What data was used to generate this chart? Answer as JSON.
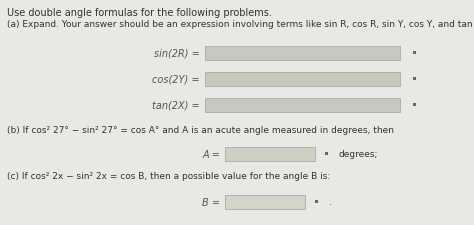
{
  "bg_color": "#e8e8e4",
  "white_color": "#ffffff",
  "text_color": "#333333",
  "title": "Use double angle formulas for the following problems.",
  "part_a_header": "(a) Expand. Your answer should be an expression involving terms like sin R, cos R, sin Y, cos Y, and tan X.",
  "equations_a": [
    "sin(2R) =",
    "cos(2Y) =",
    "tan(2X) ="
  ],
  "part_b_header": "(b) If cos² 27° − sin² 27° = cos A° and A is an acute angle measured in degrees, then",
  "eq_b": "A =",
  "b_suffix": "degrees;",
  "part_c_header": "(c) If cos² 2x − sin² 2x = cos B, then a possible value for the angle B is:",
  "eq_c": "B =",
  "c_suffix": ".",
  "input_box_color_a": "#c8c8be",
  "input_box_color_b": "#d0cfc4",
  "input_box_color_c": "#d4d4c8",
  "grid_color": "#666666",
  "label_color": "#555555",
  "italic_vars": [
    "R",
    "Y",
    "X",
    "A",
    "B"
  ]
}
